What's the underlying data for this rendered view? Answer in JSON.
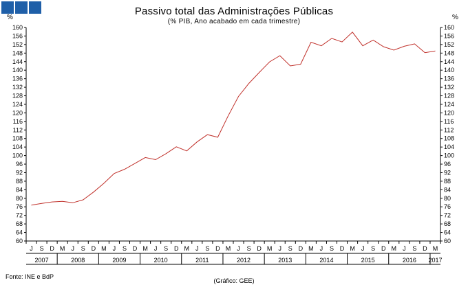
{
  "header": {
    "title": "Passivo total das Administrações Públicas",
    "subtitle": "(% PIB, Ano acabado em cada trimestre)",
    "unit_left": "%",
    "unit_right": "%"
  },
  "footer": {
    "source": "Fonte: INE e BdP",
    "credit": "(Gráfico: GEE)"
  },
  "colors": {
    "line": "#c0302a",
    "logo": "#1f5fa8",
    "axis": "#000000"
  },
  "chart_data": {
    "type": "line",
    "title": "Passivo total das Administrações Públicas",
    "subtitle": "(% PIB, Ano acabado em cada trimestre)",
    "ylabel": "%",
    "ylim": [
      60,
      160
    ],
    "yticks": [
      60,
      64,
      68,
      72,
      76,
      80,
      84,
      88,
      92,
      96,
      100,
      104,
      108,
      112,
      116,
      120,
      124,
      128,
      132,
      136,
      140,
      144,
      148,
      152,
      156,
      160
    ],
    "quarter_labels": [
      "J",
      "S",
      "D",
      "M",
      "J",
      "S",
      "D",
      "M",
      "J",
      "S",
      "D",
      "M",
      "J",
      "S",
      "D",
      "M",
      "J",
      "S",
      "D",
      "M",
      "J",
      "S",
      "D",
      "M",
      "J",
      "S",
      "D",
      "M",
      "J",
      "S",
      "D",
      "M",
      "J",
      "S",
      "D",
      "M",
      "J",
      "S",
      "D",
      "M"
    ],
    "years": [
      {
        "label": "2007",
        "from": 0,
        "to": 2
      },
      {
        "label": "2008",
        "from": 3,
        "to": 6
      },
      {
        "label": "2009",
        "from": 7,
        "to": 10
      },
      {
        "label": "2010",
        "from": 11,
        "to": 14
      },
      {
        "label": "2011",
        "from": 15,
        "to": 18
      },
      {
        "label": "2012",
        "from": 19,
        "to": 22
      },
      {
        "label": "2013",
        "from": 23,
        "to": 26
      },
      {
        "label": "2014",
        "from": 27,
        "to": 30
      },
      {
        "label": "2015",
        "from": 31,
        "to": 34
      },
      {
        "label": "2016",
        "from": 35,
        "to": 38
      },
      {
        "label": "2017",
        "from": 39,
        "to": 39
      }
    ],
    "series": [
      {
        "values": [
          76.8,
          77.6,
          78.3,
          78.6,
          77.9,
          79.3,
          82.9,
          87.0,
          91.6,
          93.6,
          96.3,
          99.1,
          98.1,
          100.9,
          104.1,
          102.2,
          106.4,
          109.8,
          108.6,
          118.6,
          127.7,
          133.8,
          138.9,
          143.9,
          146.8,
          142.0,
          142.8,
          153.1,
          151.4,
          154.9,
          153.2,
          157.8,
          151.4,
          154.1,
          151.0,
          149.4,
          151.2,
          152.3,
          148.2,
          149.0
        ]
      }
    ],
    "grid": false,
    "legend": "none"
  }
}
